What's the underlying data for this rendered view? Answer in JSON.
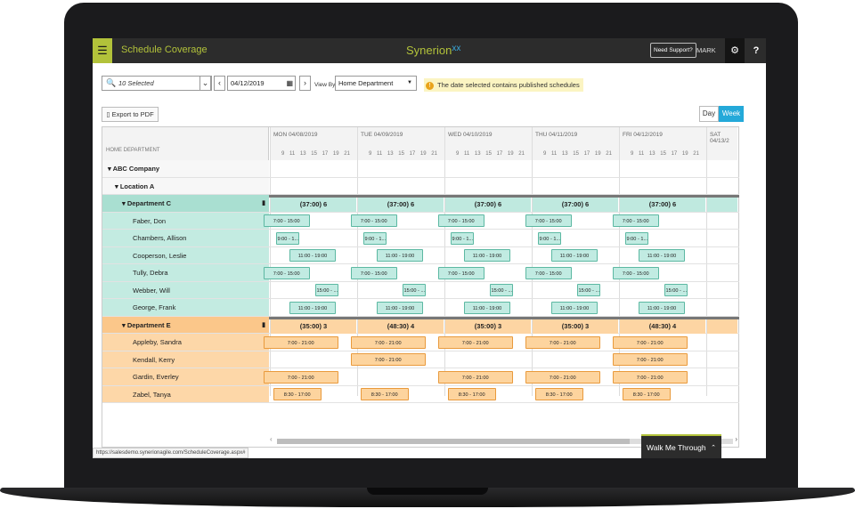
{
  "header": {
    "title": "Schedule Coverage",
    "logo_text": "Synerion",
    "logo_mark": "xx",
    "support_label": "Need Support?",
    "user": "MARK"
  },
  "toolbar": {
    "filter_value": "10 Selected",
    "date": "04/12/2019",
    "view_by_label": "View By",
    "view_by_value": "Home Department",
    "notice": "The date selected contains published schedules",
    "export_label": "Export to PDF",
    "day_label": "Day",
    "week_label": "Week"
  },
  "grid": {
    "left_header": "HOME DEPARTMENT",
    "days": [
      {
        "label": "MON 04/08/2019"
      },
      {
        "label": "TUE 04/09/2019"
      },
      {
        "label": "WED 04/10/2019"
      },
      {
        "label": "THU 04/11/2019"
      },
      {
        "label": "FRI 04/12/2019"
      },
      {
        "label": "SAT 04/13/2"
      }
    ],
    "hours": "9 11 13 15 17 19 21",
    "company": "▾ ABC Company",
    "location": "▾ Location A",
    "dept_c": {
      "name": "▾ Department C",
      "totals": [
        "(37:00) 6",
        "(37:00) 6",
        "(37:00) 6",
        "(37:00) 6",
        "(37:00) 6"
      ],
      "employees": [
        {
          "name": "Faber, Don",
          "shift": "7:00 - 15:00"
        },
        {
          "name": "Chambers, Allison",
          "shift": "9:00 - 1..."
        },
        {
          "name": "Cooperson, Leslie",
          "shift": "11:00 - 19:00"
        },
        {
          "name": "Tully, Debra",
          "shift": "7:00 - 15:00"
        },
        {
          "name": "Webber, Will",
          "shift": "15:00 - ..."
        },
        {
          "name": "George, Frank",
          "shift": "11:00 - 19:00"
        }
      ]
    },
    "dept_e": {
      "name": "▾ Department E",
      "totals": [
        "(35:00) 3",
        "(48:30) 4",
        "(35:00) 3",
        "(35:00) 3",
        "(48:30) 4"
      ],
      "employees": [
        {
          "name": "Appleby, Sandra",
          "shift": "7:00 - 21:00"
        },
        {
          "name": "Kendall, Kerry",
          "shift": "7:00 - 21:00"
        },
        {
          "name": "Gardin, Everley",
          "shift": "7:00 - 21:00"
        },
        {
          "name": "Zabel, Tanya",
          "shift": "8:30 - 17:00"
        }
      ]
    }
  },
  "status_url": "https://salesdemo.synerionagile.com/ScheduleCoverage.aspx#",
  "walk_me": "Walk Me Through",
  "colors": {
    "accent": "#b2c23a",
    "green": "#c1ebe2",
    "orange": "#fdd49e",
    "blue": "#24a9d9"
  }
}
